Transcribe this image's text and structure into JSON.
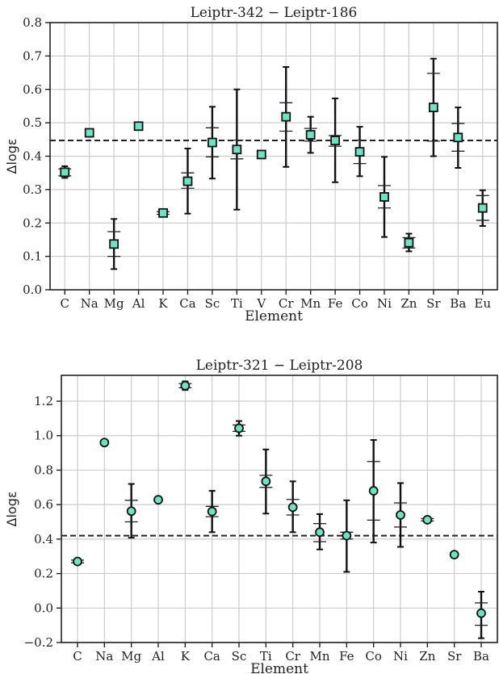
{
  "chart_data": [
    {
      "type": "scatter",
      "title": "Leiptr-342 − Leiptr-186",
      "xlabel": "Element",
      "ylabel": "Δlogε",
      "marker": "square",
      "marker_color": "#66E6C2",
      "ylim": [
        0.0,
        0.8
      ],
      "yticks": [
        "0.0",
        "0.1",
        "0.2",
        "0.3",
        "0.4",
        "0.5",
        "0.6",
        "0.7",
        "0.8"
      ],
      "reference_line": 0.447,
      "grid": true,
      "categories": [
        "C",
        "Na",
        "Mg",
        "Al",
        "K",
        "Ca",
        "Sc",
        "Ti",
        "V",
        "Cr",
        "Mn",
        "Fe",
        "Co",
        "Ni",
        "Zn",
        "Sr",
        "Ba",
        "Eu"
      ],
      "values": [
        0.352,
        0.47,
        0.137,
        0.49,
        0.23,
        0.325,
        0.441,
        0.42,
        0.405,
        0.518,
        0.464,
        0.447,
        0.413,
        0.278,
        0.141,
        0.546,
        0.456,
        0.245
      ],
      "err_low": [
        0.335,
        null,
        0.062,
        null,
        0.222,
        0.228,
        0.333,
        0.24,
        null,
        0.368,
        0.41,
        0.322,
        0.34,
        0.158,
        0.115,
        0.4,
        0.365,
        0.191
      ],
      "err_high": [
        0.37,
        null,
        0.212,
        null,
        0.238,
        0.423,
        0.548,
        0.6,
        null,
        0.667,
        0.518,
        0.573,
        0.488,
        0.398,
        0.168,
        0.692,
        0.546,
        0.298
      ],
      "inner_low": [
        0.341,
        null,
        0.1,
        null,
        0.226,
        0.304,
        0.398,
        0.392,
        null,
        0.475,
        0.445,
        0.43,
        0.378,
        0.245,
        0.125,
        0.445,
        0.415,
        0.208
      ],
      "inner_high": [
        0.362,
        null,
        0.174,
        null,
        0.234,
        0.35,
        0.485,
        0.448,
        null,
        0.56,
        0.483,
        0.462,
        0.448,
        0.312,
        0.156,
        0.648,
        0.498,
        0.282
      ]
    },
    {
      "type": "scatter",
      "title": "Leiptr-321 − Leiptr-208",
      "xlabel": "Element",
      "ylabel": "Δlogε",
      "marker": "circle",
      "marker_color": "#66E6C2",
      "ylim": [
        -0.2,
        1.35
      ],
      "yticks": [
        "−0.2",
        "0.0",
        "0.2",
        "0.4",
        "0.6",
        "0.8",
        "1.0",
        "1.2"
      ],
      "reference_line": 0.42,
      "grid": true,
      "categories": [
        "C",
        "Na",
        "Mg",
        "Al",
        "K",
        "Ca",
        "Sc",
        "Ti",
        "Cr",
        "Mn",
        "Fe",
        "Co",
        "Ni",
        "Zn",
        "Sr",
        "Ba"
      ],
      "values": [
        0.27,
        0.96,
        0.562,
        0.628,
        1.29,
        0.56,
        1.043,
        0.735,
        0.585,
        0.44,
        0.42,
        0.68,
        0.54,
        0.512,
        0.31,
        -0.03
      ],
      "err_low": [
        0.255,
        null,
        0.408,
        null,
        1.265,
        0.44,
        1.0,
        0.548,
        0.44,
        0.34,
        0.21,
        0.38,
        0.355,
        0.5,
        null,
        -0.175
      ],
      "err_high": [
        0.285,
        null,
        0.72,
        null,
        1.315,
        0.68,
        1.085,
        0.92,
        0.735,
        0.545,
        0.625,
        0.975,
        0.725,
        0.525,
        null,
        0.095
      ],
      "inner_low": [
        0.262,
        null,
        0.5,
        null,
        1.278,
        0.53,
        1.025,
        0.7,
        0.54,
        0.385,
        0.4,
        0.51,
        0.47,
        0.505,
        null,
        -0.1
      ],
      "inner_high": [
        0.278,
        null,
        0.625,
        null,
        1.302,
        0.59,
        1.062,
        0.77,
        0.63,
        0.49,
        0.44,
        0.85,
        0.61,
        0.519,
        null,
        0.03
      ]
    }
  ]
}
